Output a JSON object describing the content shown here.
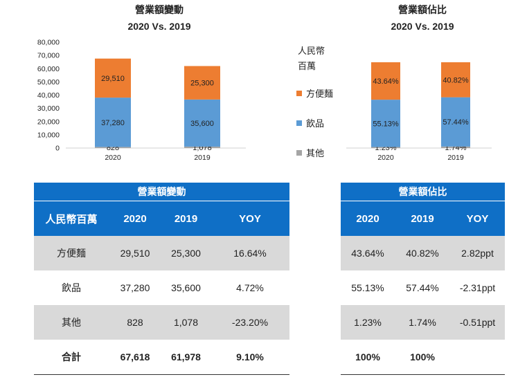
{
  "charts": {
    "left": {
      "title_line1": "營業額變動",
      "title_line2": "2020 Vs. 2019"
    },
    "right": {
      "title_line1": "營業額佔比",
      "title_line2": "2020 Vs. 2019"
    },
    "legend": {
      "title_line1": "人民幣",
      "title_line2": "百萬",
      "items": [
        {
          "label": "方便麵",
          "color": "#ed7d31"
        },
        {
          "label": "飲品",
          "color": "#5b9bd5"
        },
        {
          "label": "其他",
          "color": "#a5a5a5"
        }
      ]
    }
  },
  "chart_data": [
    {
      "type": "bar",
      "stacked": true,
      "title": "營業額變動",
      "subtitle": "2020 Vs. 2019",
      "categories": [
        "2020",
        "2019"
      ],
      "series": [
        {
          "name": "其他",
          "values": [
            828,
            1078
          ],
          "labels": [
            "828",
            "1,078"
          ],
          "color": "#a5a5a5"
        },
        {
          "name": "飲品",
          "values": [
            37280,
            35600
          ],
          "labels": [
            "37,280",
            "35,600"
          ],
          "color": "#5b9bd5"
        },
        {
          "name": "方便麵",
          "values": [
            29510,
            25300
          ],
          "labels": [
            "29,510",
            "25,300"
          ],
          "color": "#ed7d31"
        }
      ],
      "yticks": [
        "0",
        "10,000",
        "20,000",
        "30,000",
        "40,000",
        "50,000",
        "60,000",
        "70,000",
        "80,000"
      ],
      "ylim": [
        0,
        80000
      ],
      "grid": false,
      "legend": "right"
    },
    {
      "type": "bar",
      "stacked": true,
      "title": "營業額佔比",
      "subtitle": "2020 Vs. 2019",
      "categories": [
        "2020",
        "2019"
      ],
      "series": [
        {
          "name": "其他",
          "values": [
            1.23,
            1.74
          ],
          "labels": [
            "1.23%",
            "1.74%"
          ],
          "color": "#a5a5a5"
        },
        {
          "name": "飲品",
          "values": [
            55.13,
            57.44
          ],
          "labels": [
            "55.13%",
            "57.44%"
          ],
          "color": "#5b9bd5"
        },
        {
          "name": "方便麵",
          "values": [
            43.64,
            40.82
          ],
          "labels": [
            "43.64%",
            "40.82%"
          ],
          "color": "#ed7d31"
        }
      ],
      "ylim": [
        0,
        100
      ],
      "grid": false,
      "legend": "left"
    }
  ],
  "table_left": {
    "title": "營業額變動",
    "headers": [
      "人民幣百萬",
      "2020",
      "2019",
      "YOY"
    ],
    "rows": [
      [
        "方便麵",
        "29,510",
        "25,300",
        "16.64%"
      ],
      [
        "飲品",
        "37,280",
        "35,600",
        "4.72%"
      ],
      [
        "其他",
        "828",
        "1,078",
        "-23.20%"
      ],
      [
        "合計",
        "67,618",
        "61,978",
        "9.10%"
      ]
    ]
  },
  "table_right": {
    "title": "營業額佔比",
    "headers": [
      "2020",
      "2019",
      "YOY"
    ],
    "rows": [
      [
        "43.64%",
        "40.82%",
        "2.82ppt"
      ],
      [
        "55.13%",
        "57.44%",
        "-2.31ppt"
      ],
      [
        "1.23%",
        "1.74%",
        "-0.51ppt"
      ],
      [
        "100%",
        "100%",
        ""
      ]
    ]
  }
}
